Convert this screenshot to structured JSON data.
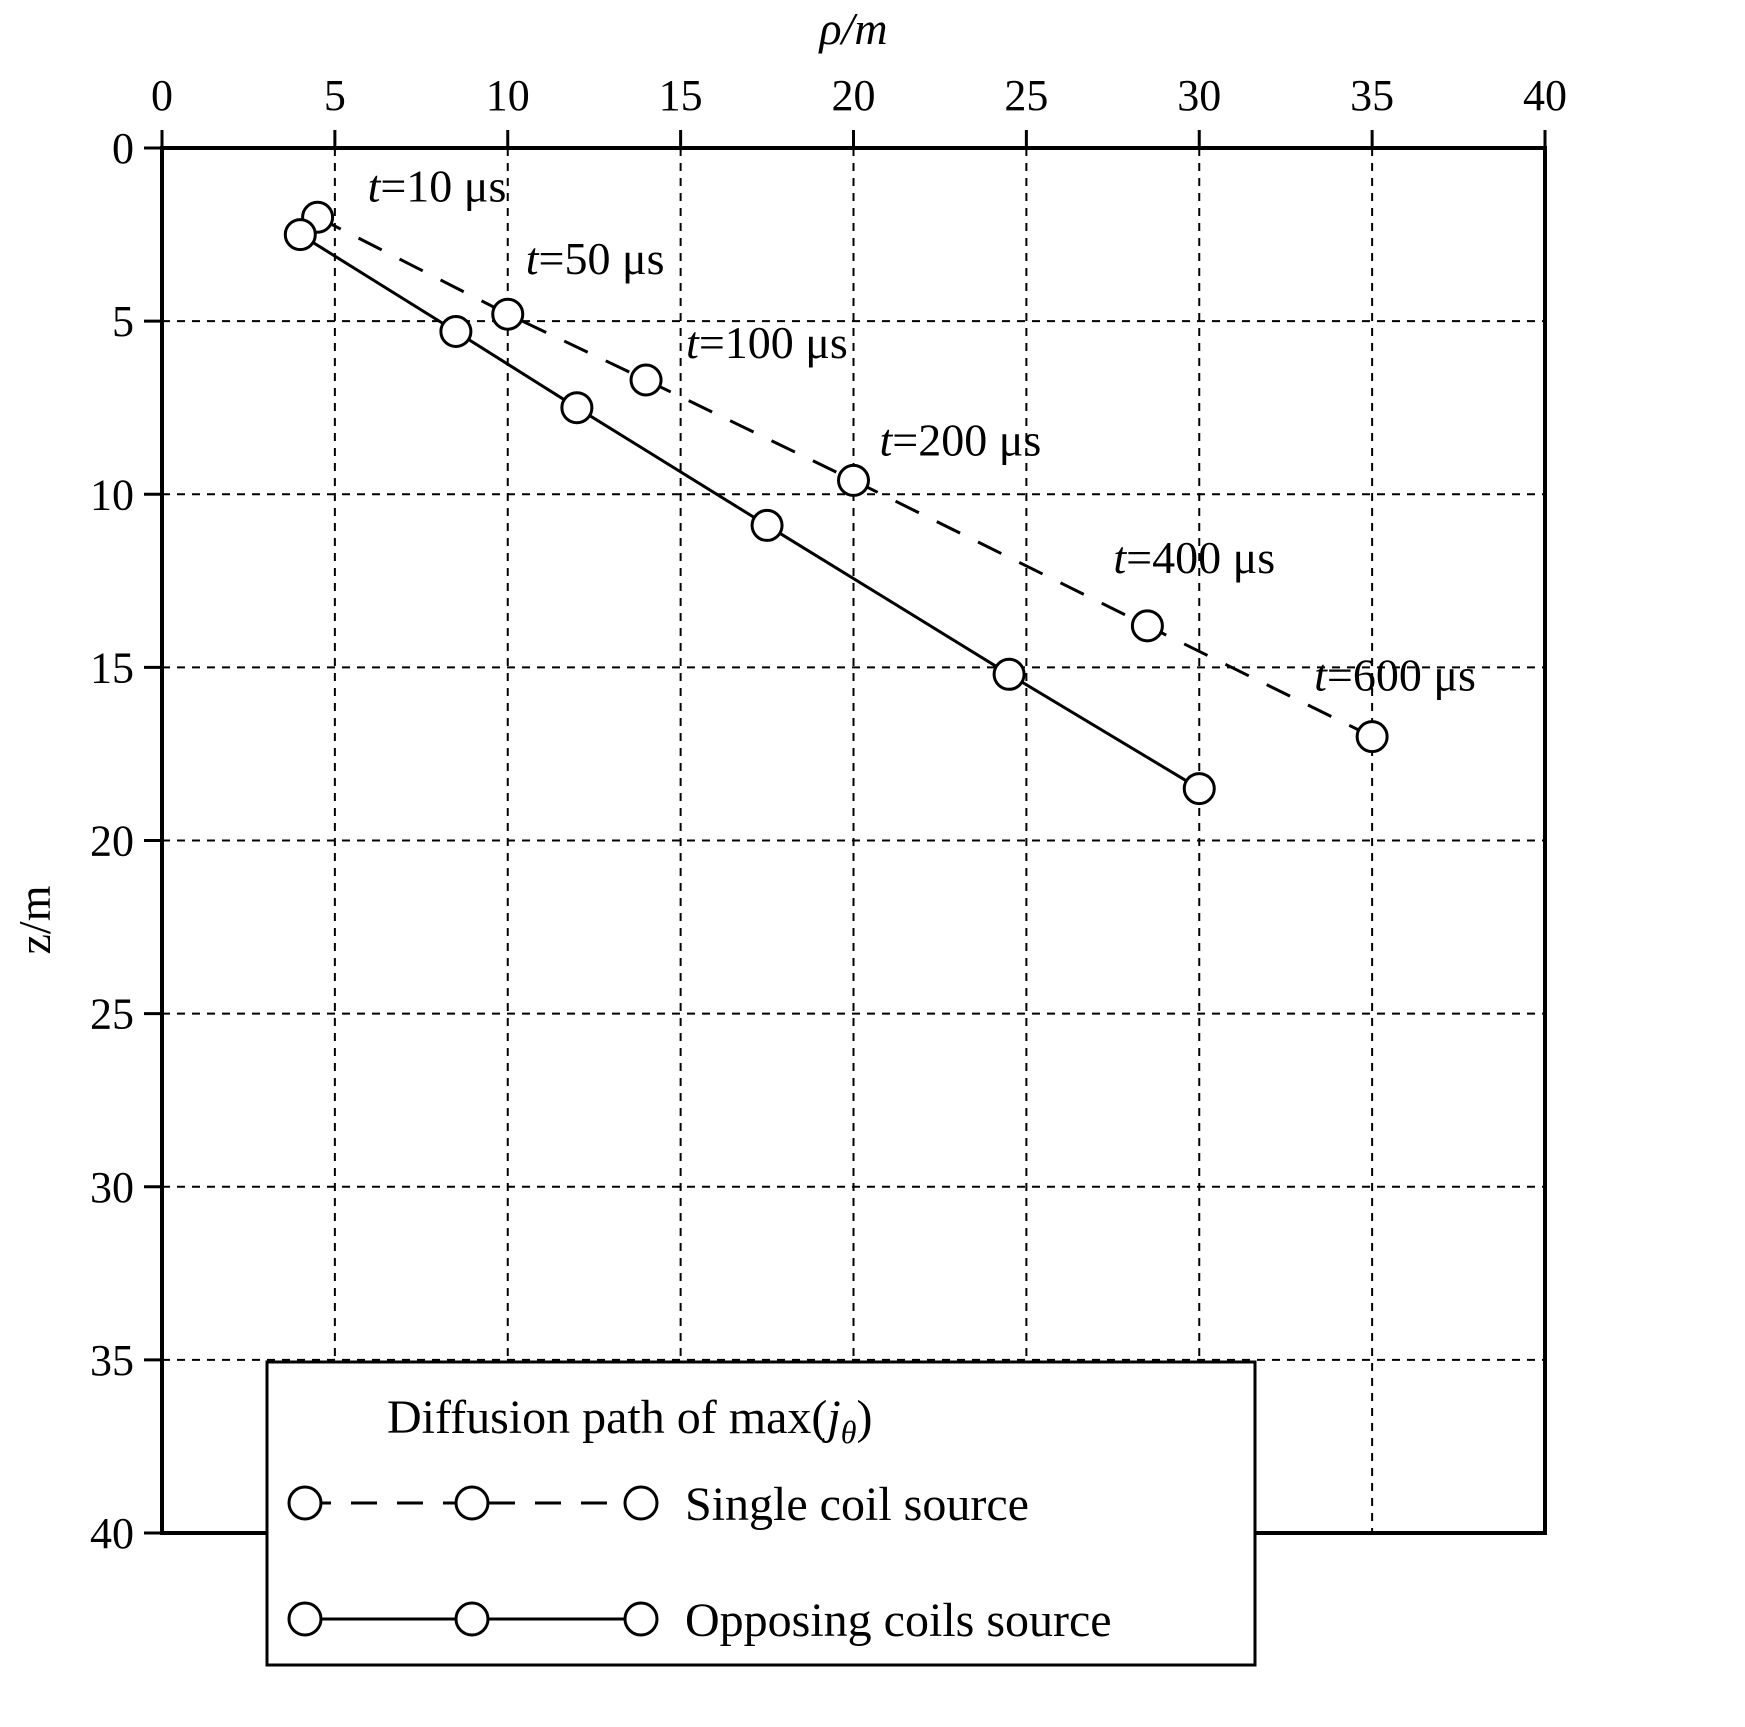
{
  "chart_data": {
    "type": "line",
    "xlabel": "ρ/m",
    "ylabel": "z/m",
    "xlim": [
      0,
      40
    ],
    "ylim": [
      0,
      40
    ],
    "x_axis_position": "top",
    "y_axis_inverted": true,
    "x_ticks": [
      "0",
      "5",
      "10",
      "15",
      "20",
      "25",
      "30",
      "35",
      "40"
    ],
    "y_ticks": [
      "0",
      "5",
      "10",
      "15",
      "20",
      "25",
      "30",
      "35",
      "40"
    ],
    "grid": true,
    "legend": {
      "title": "Diffusion path of max(jθ)",
      "title_prefix": "Diffusion path of max(",
      "title_var": "j",
      "title_sub": "θ",
      "title_suffix": ")",
      "placement": "bottom-left"
    },
    "series": [
      {
        "name": "Single coil source",
        "style": "dashed",
        "color": "#000000",
        "marker": "circle",
        "points": [
          [
            4.5,
            2.0
          ],
          [
            10.0,
            4.8
          ],
          [
            14.0,
            6.7
          ],
          [
            20.0,
            9.6
          ],
          [
            28.5,
            13.8
          ],
          [
            35.0,
            17.0
          ]
        ]
      },
      {
        "name": "Opposing coils source",
        "style": "solid",
        "color": "#000000",
        "marker": "circle",
        "points": [
          [
            4.0,
            2.5
          ],
          [
            8.5,
            5.3
          ],
          [
            12.0,
            7.5
          ],
          [
            17.5,
            10.9
          ],
          [
            24.5,
            15.2
          ],
          [
            30.0,
            18.5
          ]
        ]
      }
    ],
    "annotations": [
      {
        "var": "t",
        "text": "=10 μs",
        "x": 4.5,
        "y": 2.0
      },
      {
        "var": "t",
        "text": "=50 μs",
        "x": 10.0,
        "y": 4.8
      },
      {
        "var": "t",
        "text": "=100 μs",
        "x": 14.0,
        "y": 6.7
      },
      {
        "var": "t",
        "text": "=200 μs",
        "x": 20.0,
        "y": 9.6
      },
      {
        "var": "t",
        "text": "=400 μs",
        "x": 28.5,
        "y": 13.8
      },
      {
        "var": "t",
        "text": "=600 μs",
        "x": 35.0,
        "y": 17.0
      }
    ]
  }
}
